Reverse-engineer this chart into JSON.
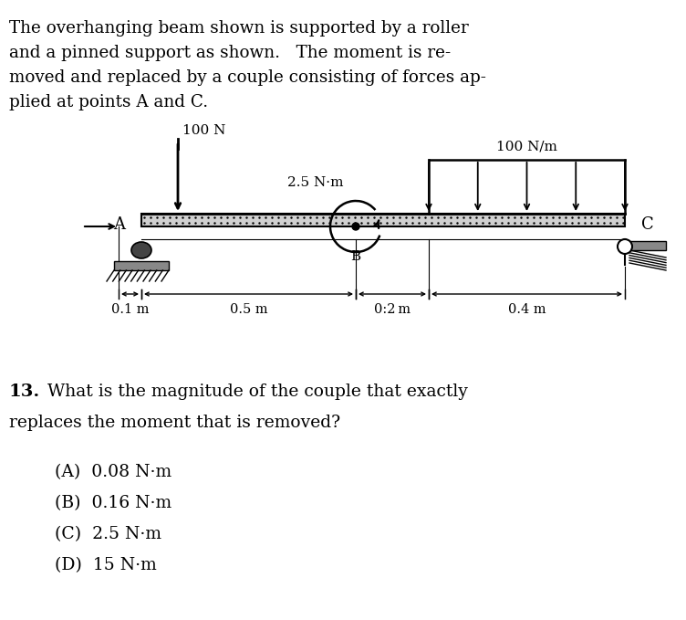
{
  "background_color": "#ffffff",
  "intro_lines": [
    "The overhanging beam shown is supported by a roller",
    "and a pinned support as shown.   The moment is re-",
    "moved and replaced by a couple consisting of forces ap-",
    "plied at points A and C."
  ],
  "question_num": "13.",
  "question_line1": "What is the magnitude of the couple that exactly",
  "question_line2": "replaces the moment that is removed?",
  "choices": [
    "(A)  0.08 N·m",
    "(B)  0.16 N·m",
    "(C)  2.5 N·m",
    "(D)  15 N·m"
  ],
  "label_100N": "100 N",
  "label_100Nm": "100 N/m",
  "label_2p5Nm": "2.5 N·m",
  "label_A": "A",
  "label_B": "B",
  "label_C": "C",
  "dim_0p1": "0.1 m",
  "dim_0p5": "0.5 m",
  "dim_0p2": "0:2 m",
  "dim_0p4": "0.4 m"
}
